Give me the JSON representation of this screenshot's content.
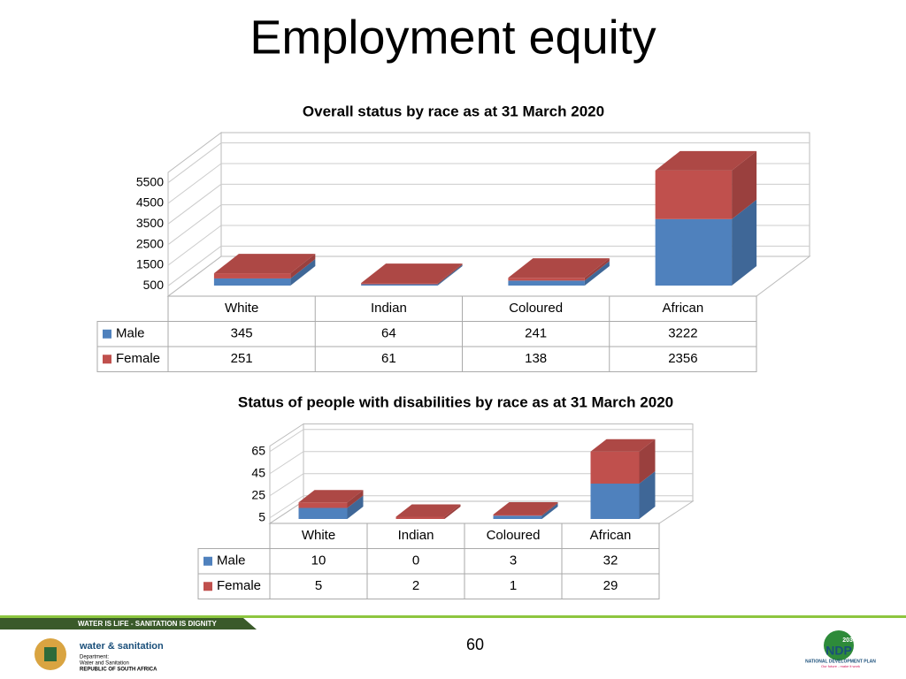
{
  "title": "Employment equity",
  "chart_data": [
    {
      "type": "bar3d-stacked",
      "title": "Overall status by race as at 31 March 2020",
      "categories": [
        "White",
        "Indian",
        "Coloured",
        "African"
      ],
      "series": [
        {
          "name": "Male",
          "color": "#4f81bd",
          "values": [
            345,
            64,
            241,
            3222
          ]
        },
        {
          "name": "Female",
          "color": "#c0504d",
          "values": [
            251,
            61,
            138,
            2356
          ]
        }
      ],
      "ylim": [
        0,
        6000
      ],
      "yticks": [
        500,
        1500,
        2500,
        3500,
        4500,
        5500
      ],
      "grid": true,
      "data_table": true
    },
    {
      "type": "bar3d-stacked",
      "title": "Status of people with disabilities by race as at 31 March 2020",
      "categories": [
        "White",
        "Indian",
        "Coloured",
        "African"
      ],
      "series": [
        {
          "name": "Male",
          "color": "#4f81bd",
          "values": [
            10,
            0,
            3,
            32
          ]
        },
        {
          "name": "Female",
          "color": "#c0504d",
          "values": [
            5,
            2,
            1,
            29
          ]
        }
      ],
      "ylim": [
        0,
        70
      ],
      "yticks": [
        5,
        25,
        45,
        65
      ],
      "grid": true,
      "data_table": true
    }
  ],
  "footer": {
    "banner": "WATER IS LIFE - SANITATION IS DIGNITY",
    "page_number": "60",
    "dept_name": "water & sanitation",
    "dept_line1": "Department:",
    "dept_line2": "Water and Sanitation",
    "dept_line3": "REPUBLIC OF SOUTH AFRICA",
    "ndp_year": "2030",
    "ndp_short": "NDP",
    "ndp_name": "NATIONAL DEVELOPMENT PLAN",
    "ndp_tagline": "Our future - make it work"
  }
}
